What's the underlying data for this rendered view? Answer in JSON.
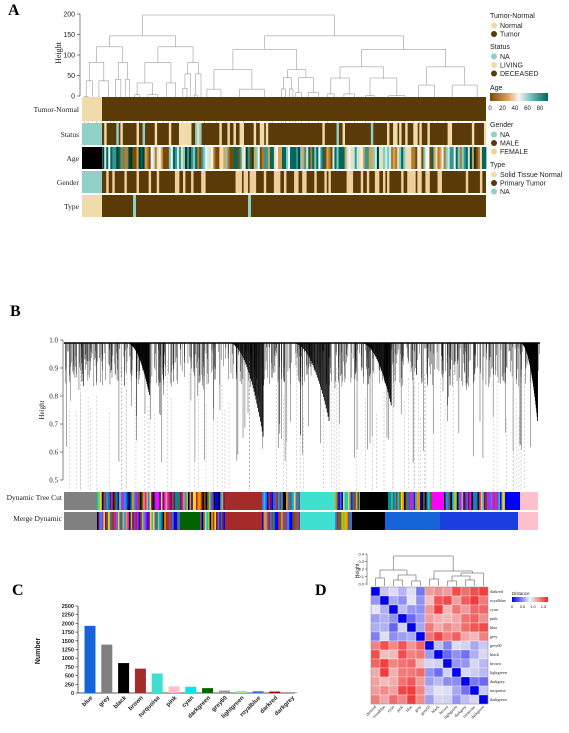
{
  "panels": {
    "a": "A",
    "b": "B",
    "c": "C",
    "d": "D"
  },
  "panel_a": {
    "ylabel": "Height",
    "yticks": [
      0,
      50,
      100,
      150,
      200
    ],
    "rows": [
      "Tumor-Normal",
      "Status",
      "Age",
      "Gender",
      "Type"
    ],
    "legend": {
      "tumor_normal_title": "Tumor-Normal",
      "tumor_normal": [
        {
          "label": "Normal",
          "color": "#f0d9a8"
        },
        {
          "label": "Tumor",
          "color": "#5a3a07"
        }
      ],
      "status_title": "Status",
      "status": [
        {
          "label": "NA",
          "color": "#8fd1c9"
        },
        {
          "label": "LIVING",
          "color": "#efdcaa"
        },
        {
          "label": "DECEASED",
          "color": "#5a3a07"
        }
      ],
      "age_title": "Age",
      "age_ticks": [
        "0",
        "20",
        "40",
        "60",
        "80"
      ],
      "gender_title": "Gender",
      "gender": [
        {
          "label": "NA",
          "color": "#8fd1c9"
        },
        {
          "label": "MALE",
          "color": "#5a3a07"
        },
        {
          "label": "FEMALE",
          "color": "#efcf9a"
        }
      ],
      "type_title": "Type",
      "type": [
        {
          "label": "Solid Tissue Normal",
          "color": "#efdcaa"
        },
        {
          "label": "Primary Tumor",
          "color": "#5a3a07"
        },
        {
          "label": "NA",
          "color": "#8fd1c9"
        }
      ]
    }
  },
  "panel_b": {
    "ylabel": "Height",
    "yticks": [
      "1.0",
      "0.9",
      "0.8",
      "0.7",
      "0.6",
      "0.5"
    ],
    "row_labels": [
      "Dynamic Tree Cut",
      "Merge Dynamic"
    ]
  },
  "chart_data": {
    "type": "bar",
    "ylabel": "Number",
    "ylim": [
      0,
      2500
    ],
    "yticks": [
      0,
      250,
      500,
      750,
      1000,
      1250,
      1500,
      1750,
      2000,
      2250,
      2500
    ],
    "categories": [
      "blue",
      "grey",
      "black",
      "brown",
      "turquoise",
      "pink",
      "cyan",
      "darkgreen",
      "grey60",
      "lightgreen",
      "royalblue",
      "darkred",
      "darkgrey"
    ],
    "values": [
      1930,
      1390,
      860,
      700,
      560,
      190,
      180,
      140,
      70,
      55,
      50,
      40,
      30
    ],
    "colors": [
      "#1565d8",
      "#808080",
      "#000000",
      "#a52a2a",
      "#40e0d0",
      "#ffc0cb",
      "#00e5ee",
      "#006400",
      "#999999",
      "#90ee90",
      "#4169e1",
      "#8b0000",
      "#a9a9a9"
    ]
  },
  "panel_d": {
    "ylabel": "Height",
    "yticks": [
      "0.4",
      "0.3",
      "0.2",
      "0.1",
      "0.0"
    ],
    "legend_title": "Distance",
    "legend_ticks": [
      "0",
      "0.5",
      "1.0",
      "1.5"
    ],
    "row_labels": [
      "darkred",
      "royalblue",
      "cyan",
      "pink",
      "blue",
      "grey",
      "grey60",
      "black",
      "brown",
      "lightgreen",
      "darkgrey",
      "turquoise",
      "darkgreen"
    ],
    "col_labels": [
      "darkred",
      "royalblue",
      "cyan",
      "pink",
      "blue",
      "grey",
      "grey60",
      "black",
      "brown",
      "lightgreen",
      "darkgrey",
      "turquoise",
      "darkgreen"
    ]
  }
}
